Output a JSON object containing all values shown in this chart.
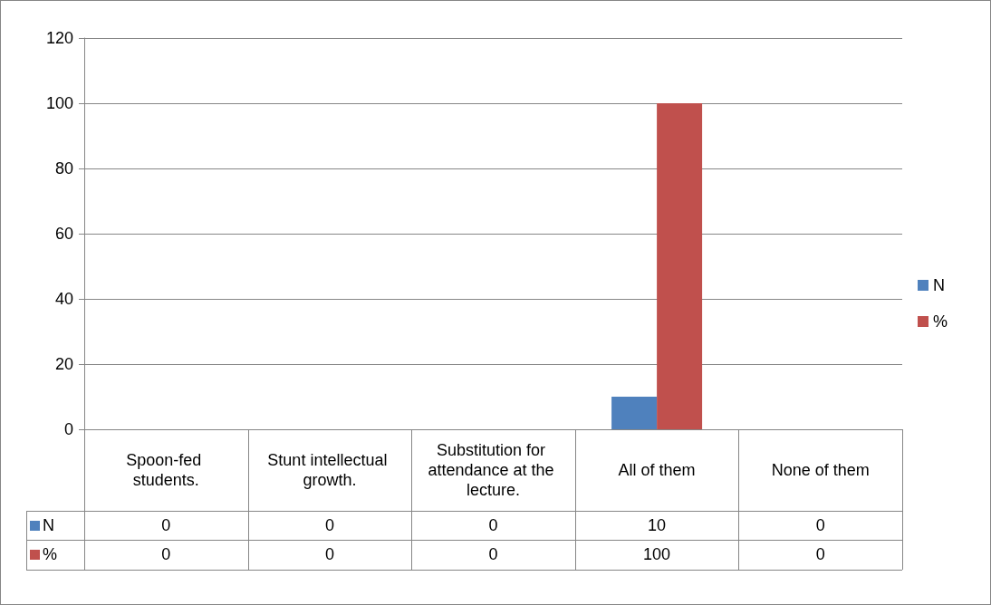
{
  "chart_data": {
    "type": "bar",
    "categories": [
      "Spoon-fed students.",
      "Stunt intellectual growth.",
      "Substitution for attendance at the lecture.",
      "All of them",
      "None of them"
    ],
    "series": [
      {
        "name": "N",
        "color": "#4f81bd",
        "values": [
          0,
          0,
          0,
          10,
          0
        ]
      },
      {
        "name": "%",
        "color": "#c0504d",
        "values": [
          0,
          0,
          0,
          100,
          0
        ]
      }
    ],
    "ylim": [
      0,
      120
    ],
    "yticks": [
      0,
      20,
      40,
      60,
      80,
      100,
      120
    ],
    "grid": "y",
    "legend": "right",
    "data_labels": true
  }
}
